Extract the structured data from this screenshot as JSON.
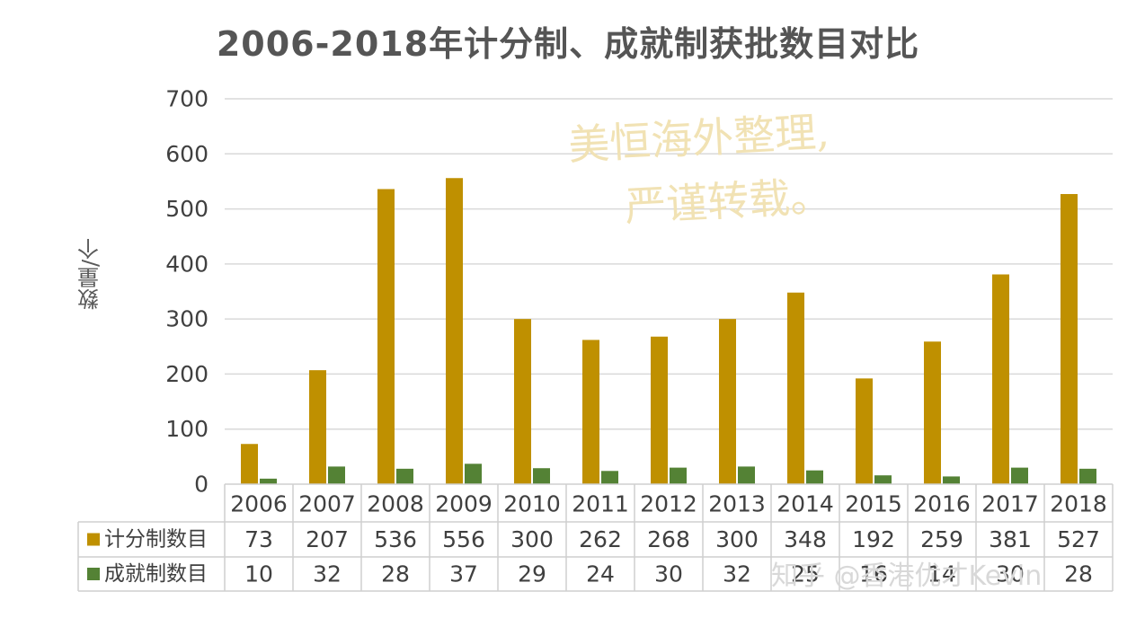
{
  "chart_data": {
    "type": "bar",
    "title": "2006-2018年计分制、成就制获批数目对比",
    "ylabel": "数量/个",
    "xlabel": "",
    "ylim": [
      0,
      700
    ],
    "yticks": [
      0,
      100,
      200,
      300,
      400,
      500,
      600,
      700
    ],
    "grid": true,
    "legend": "data-table",
    "categories": [
      "2006",
      "2007",
      "2008",
      "2009",
      "2010",
      "2011",
      "2012",
      "2013",
      "2014",
      "2015",
      "2016",
      "2017",
      "2018"
    ],
    "series": [
      {
        "name": "计分制数目",
        "color": "#bf9000",
        "values": [
          73,
          207,
          536,
          556,
          300,
          262,
          268,
          300,
          348,
          192,
          259,
          381,
          527
        ]
      },
      {
        "name": "成就制数目",
        "color": "#548235",
        "values": [
          10,
          32,
          28,
          37,
          29,
          24,
          30,
          32,
          25,
          16,
          14,
          30,
          28
        ]
      }
    ]
  },
  "watermark": {
    "line1": "美恒海外整理,",
    "line2": "严谨转载。"
  },
  "credit": "知乎 @香港优才Kevin"
}
